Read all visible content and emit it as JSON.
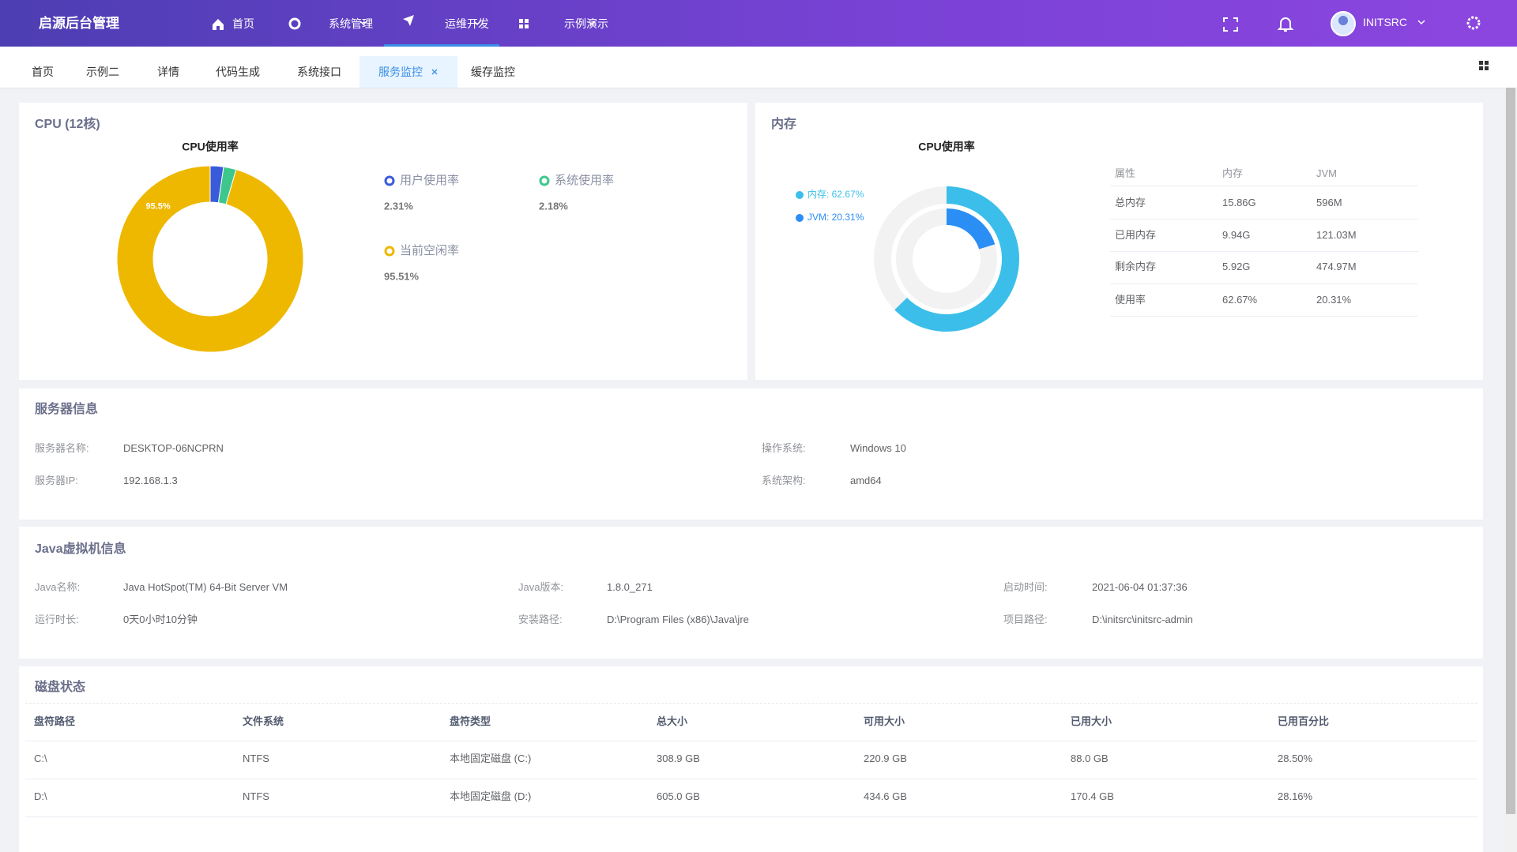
{
  "header": {
    "title": "启源后台管理",
    "nav": [
      "首页",
      "系统管理",
      "运维开发",
      "示例演示"
    ],
    "user": "INITSRC"
  },
  "tabs": [
    "首页",
    "示例二",
    "详情",
    "代码生成",
    "系统接口",
    "服务监控",
    "缓存监控"
  ],
  "cpu": {
    "title": "CPU (12核)"
  },
  "memory": {
    "title": "内存",
    "table": {
      "columns": [
        "属性",
        "内存",
        "JVM"
      ],
      "rows": [
        [
          "总内存",
          "15.86G",
          "596M"
        ],
        [
          "已用内存",
          "9.94G",
          "121.03M"
        ],
        [
          "剩余内存",
          "5.92G",
          "474.97M"
        ],
        [
          "使用率",
          "62.67%",
          "20.31%"
        ]
      ]
    }
  },
  "server": {
    "title": "服务器信息",
    "items": [
      {
        "label": "服务器名称:",
        "value": "DESKTOP-06NCPRN"
      },
      {
        "label": "操作系统:",
        "value": "Windows 10"
      },
      {
        "label": "服务器IP:",
        "value": "192.168.1.3"
      },
      {
        "label": "系统架构:",
        "value": "amd64"
      }
    ]
  },
  "jvm": {
    "title": "Java虚拟机信息",
    "items": [
      {
        "label": "Java名称:",
        "value": "Java HotSpot(TM) 64-Bit Server VM"
      },
      {
        "label": "Java版本:",
        "value": "1.8.0_271"
      },
      {
        "label": "启动时间:",
        "value": "2021-06-04 01:37:36"
      },
      {
        "label": "运行时长:",
        "value": "0天0小时10分钟"
      },
      {
        "label": "安装路径:",
        "value": "D:\\Program Files (x86)\\Java\\jre"
      },
      {
        "label": "项目路径:",
        "value": "D:\\initsrc\\initsrc-admin"
      }
    ]
  },
  "disk": {
    "title": "磁盘状态",
    "columns": [
      "盘符路径",
      "文件系统",
      "盘符类型",
      "总大小",
      "可用大小",
      "已用大小",
      "已用百分比"
    ],
    "rows": [
      [
        "C:\\",
        "NTFS",
        "本地固定磁盘 (C:)",
        "308.9 GB",
        "220.9 GB",
        "88.0 GB",
        "28.50%"
      ],
      [
        "D:\\",
        "NTFS",
        "本地固定磁盘 (D:)",
        "605.0 GB",
        "434.6 GB",
        "170.4 GB",
        "28.16%"
      ]
    ]
  },
  "chart_data": [
    {
      "type": "pie",
      "title": "CPU使用率",
      "categories": [
        "用户使用率",
        "系统使用率",
        "当前空闲率"
      ],
      "values": [
        2.31,
        2.18,
        95.51
      ],
      "value_labels": [
        "2.31%",
        "2.18%",
        "95.51%"
      ],
      "inner_labels": [
        null,
        null,
        "95.5%"
      ],
      "colors": [
        "#3a5bd9",
        "#3ec78c",
        "#eeb800"
      ]
    },
    {
      "type": "radialBar",
      "title": "CPU使用率",
      "categories": [
        "内存",
        "JVM"
      ],
      "values": [
        62.67,
        20.31
      ],
      "value_labels": [
        "内存: 62.67%",
        "JVM: 20.31%"
      ],
      "colors": [
        "#3bbfea",
        "#2b8ef5"
      ],
      "ylim": [
        0,
        100
      ]
    }
  ]
}
